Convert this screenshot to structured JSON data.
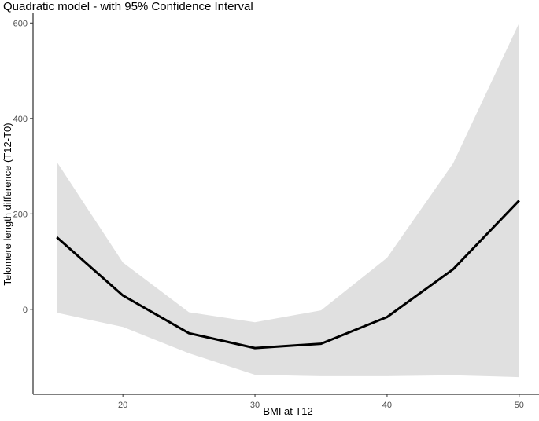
{
  "chart_data": {
    "type": "line",
    "title": "Quadratic model - with 95% Confidence Interval",
    "xlabel": "BMI at T12",
    "ylabel": "Telomere length difference (T12-T0)",
    "xlim": [
      13.2,
      51.5
    ],
    "ylim": [
      -178,
      612
    ],
    "x_ticks": [
      20,
      30,
      40,
      50
    ],
    "y_ticks": [
      0,
      200,
      400,
      600
    ],
    "grid": false,
    "fit_color": "#000000",
    "band_color": "#e0e0e0",
    "series": [
      {
        "x": [
          15,
          20,
          25,
          30,
          35,
          40,
          45,
          50
        ],
        "y": [
          151,
          29,
          -50,
          -81,
          -72,
          -16,
          84,
          228
        ],
        "lower": [
          -7,
          -37,
          -92,
          -137,
          -140,
          -140,
          -138,
          -142
        ],
        "upper": [
          309,
          98,
          -6,
          -27,
          -2,
          108,
          306,
          600
        ]
      }
    ]
  }
}
